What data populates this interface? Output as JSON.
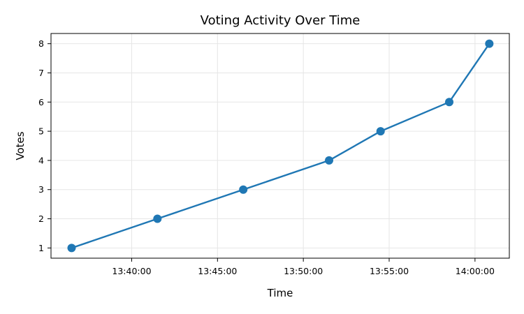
{
  "chart_data": {
    "type": "line",
    "title": "Voting Activity Over Time",
    "xlabel": "Time",
    "ylabel": "Votes",
    "x": [
      "13:36:30",
      "13:41:30",
      "13:46:30",
      "13:51:30",
      "13:54:30",
      "13:58:30",
      "14:00:50"
    ],
    "series": [
      {
        "name": "",
        "values": [
          1,
          2,
          3,
          4,
          5,
          6,
          8
        ]
      }
    ],
    "xlim": [
      "13:35:18",
      "14:02:00"
    ],
    "ylim": [
      0.65,
      8.35
    ],
    "x_ticks": [
      "13:40:00",
      "13:45:00",
      "13:50:00",
      "13:55:00",
      "14:00:00"
    ],
    "y_ticks": [
      1,
      2,
      3,
      4,
      5,
      6,
      7,
      8
    ],
    "grid": true,
    "legend": "none",
    "colors": {
      "series": "#1f77b4"
    }
  }
}
